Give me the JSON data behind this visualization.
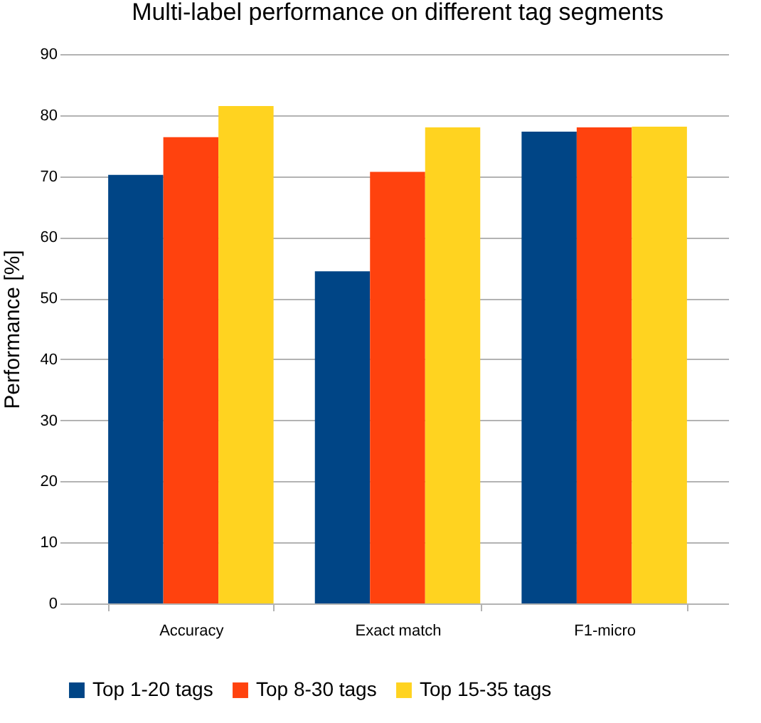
{
  "chart_data": {
    "type": "bar",
    "title": "Multi-label performance on different tag segments",
    "ylabel": "Performance [%]",
    "categories": [
      "Accuracy",
      "Exact match",
      "F1-micro"
    ],
    "series": [
      {
        "name": "Top 1-20 tags",
        "color": "#004586",
        "values": [
          70.2,
          54.4,
          77.3
        ]
      },
      {
        "name": "Top 8-30 tags",
        "color": "#ff420e",
        "values": [
          76.4,
          70.7,
          78.0
        ]
      },
      {
        "name": "Top 15-35 tags",
        "color": "#ffd320",
        "values": [
          81.5,
          78.0,
          78.1
        ]
      }
    ],
    "ylim": [
      0,
      90
    ],
    "yticks": [
      0,
      10,
      20,
      30,
      40,
      50,
      60,
      70,
      80,
      90
    ],
    "grid": "y",
    "legend": "bottom"
  }
}
